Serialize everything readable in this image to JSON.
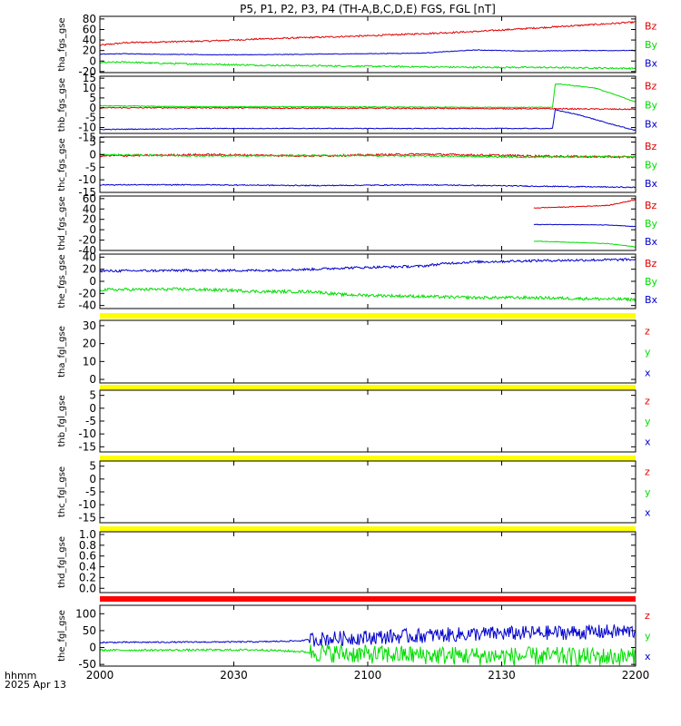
{
  "title": "P5, P1, P2, P3, P4 (TH-A,B,C,D,E) FGS, FGL [nT]",
  "time_axis": {
    "label_line1": "hhmm",
    "label_line2": "2025 Apr 13",
    "ticks": [
      "2000",
      "2030",
      "2100",
      "2130",
      "2200"
    ]
  },
  "colors": {
    "z": "#e00000",
    "y": "#00dd00",
    "x": "#0000cc",
    "flag_yellow": "#ffff00",
    "flag_red": "#ff0000"
  },
  "chart_data": [
    {
      "type": "line",
      "ylabel": "tha_fgs_gse",
      "ylim": [
        -22,
        85
      ],
      "yticks": [
        "80",
        "60",
        "40",
        "20",
        "0",
        "-20"
      ],
      "ytick_values": [
        80,
        60,
        40,
        20,
        0,
        -20
      ],
      "legend": [
        "Bz",
        "By",
        "Bx"
      ],
      "series": [
        {
          "name": "Bz",
          "color": "#e00000",
          "x": [
            0,
            10,
            20,
            40,
            60,
            80,
            100,
            120,
            140,
            160,
            180,
            200
          ],
          "y": [
            30,
            35,
            36,
            38,
            42,
            45,
            48,
            52,
            56,
            62,
            68,
            74
          ],
          "noise": 1.5
        },
        {
          "name": "By",
          "color": "#00dd00",
          "x": [
            0,
            10,
            20,
            40,
            60,
            80,
            100,
            120,
            140,
            160,
            180,
            200
          ],
          "y": [
            -3,
            -2,
            -4,
            -6,
            -8,
            -9,
            -10,
            -11,
            -12,
            -12,
            -13,
            -14
          ],
          "noise": 1.5
        },
        {
          "name": "Bx",
          "color": "#0000cc",
          "x": [
            0,
            10,
            20,
            40,
            60,
            80,
            100,
            120,
            140,
            160,
            180,
            200
          ],
          "y": [
            13,
            14,
            13,
            12,
            12,
            13,
            14,
            15,
            21,
            19,
            20,
            20
          ],
          "noise": 0.6
        }
      ]
    },
    {
      "type": "line",
      "ylabel": "thb_fgs_gse",
      "ylim": [
        -13,
        16
      ],
      "yticks": [
        "15",
        "10",
        "5",
        "0",
        "-5",
        "-10",
        "-15"
      ],
      "ytick_values": [
        15,
        10,
        5,
        0,
        -5,
        -10,
        -15
      ],
      "legend": [
        "Bz",
        "By",
        "Bx"
      ],
      "series": [
        {
          "name": "Bz",
          "color": "#e00000",
          "x": [
            0,
            40,
            80,
            120,
            170,
            172,
            200
          ],
          "y": [
            0,
            0,
            -0.2,
            -0.3,
            -0.5,
            -0.5,
            -0.8
          ],
          "noise": 0.3
        },
        {
          "name": "By",
          "color": "#00dd00",
          "x": [
            0,
            40,
            80,
            120,
            169,
            170,
            172,
            185,
            200
          ],
          "y": [
            1,
            0.5,
            0.5,
            0.3,
            0.2,
            12,
            12,
            10,
            3
          ],
          "noise": 0.2
        },
        {
          "name": "Bx",
          "color": "#0000cc",
          "x": [
            0,
            40,
            80,
            120,
            169,
            170,
            180,
            190,
            200
          ],
          "y": [
            -11,
            -10.5,
            -10.5,
            -10.5,
            -10.5,
            -1,
            -4,
            -8,
            -11.5
          ],
          "noise": 0.2
        }
      ]
    },
    {
      "type": "line",
      "ylabel": "thc_fgs_gse",
      "ylim": [
        -15,
        7
      ],
      "yticks": [
        "5",
        "0",
        "-5",
        "-10",
        "-15"
      ],
      "ytick_values": [
        5,
        0,
        -5,
        -10,
        -15
      ],
      "legend": [
        "Bz",
        "By",
        "Bx"
      ],
      "series": [
        {
          "name": "Bz",
          "color": "#e00000",
          "x": [
            0,
            40,
            80,
            120,
            160,
            200
          ],
          "y": [
            -0.5,
            0,
            -0.5,
            0.2,
            -0.5,
            -1
          ],
          "noise": 0.4
        },
        {
          "name": "By",
          "color": "#00dd00",
          "x": [
            0,
            40,
            80,
            120,
            160,
            200
          ],
          "y": [
            0,
            -0.5,
            -0.3,
            -0.5,
            -1,
            -0.8
          ],
          "noise": 0.3
        },
        {
          "name": "Bx",
          "color": "#0000cc",
          "x": [
            0,
            40,
            80,
            120,
            160,
            200
          ],
          "y": [
            -12,
            -12,
            -12.3,
            -12,
            -12.5,
            -13
          ],
          "noise": 0.2
        }
      ]
    },
    {
      "type": "line",
      "ylabel": "thd_fgs_gse",
      "ylim": [
        -40,
        65
      ],
      "yticks": [
        "60",
        "40",
        "20",
        "0",
        "-20",
        "-40"
      ],
      "ytick_values": [
        60,
        40,
        20,
        0,
        -20,
        -40
      ],
      "legend": [
        "Bz",
        "By",
        "Bx"
      ],
      "series": [
        {
          "name": "Bz",
          "color": "#e00000",
          "x": [
            162,
            175,
            190,
            200
          ],
          "y": [
            42,
            44,
            47,
            58
          ],
          "noise": 0.8
        },
        {
          "name": "By",
          "color": "#00dd00",
          "x": [
            162,
            175,
            190,
            200
          ],
          "y": [
            -22,
            -24,
            -27,
            -33
          ],
          "noise": 0.5
        },
        {
          "name": "Bx",
          "color": "#0000cc",
          "x": [
            162,
            175,
            190,
            200
          ],
          "y": [
            10,
            10,
            9,
            6
          ],
          "noise": 0.5
        }
      ]
    },
    {
      "type": "line",
      "ylabel": "the_fgs_gse",
      "ylim": [
        -45,
        45
      ],
      "yticks": [
        "40",
        "20",
        "0",
        "-20",
        "-40"
      ],
      "ytick_values": [
        40,
        20,
        0,
        -20,
        -40
      ],
      "legend": [
        "Bz",
        "By",
        "Bx"
      ],
      "series": [
        {
          "name": "By",
          "color": "#00dd00",
          "x": [
            0,
            30,
            50,
            60,
            80,
            90,
            120,
            140,
            160,
            200
          ],
          "y": [
            -14,
            -13,
            -15,
            -17,
            -17,
            -22,
            -25,
            -27,
            -27,
            -30
          ],
          "noise": 2.5
        },
        {
          "name": "Bx",
          "color": "#0000cc",
          "x": [
            0,
            30,
            50,
            60,
            80,
            90,
            120,
            130,
            140,
            160,
            200
          ],
          "y": [
            17,
            18,
            18,
            18,
            20,
            22,
            25,
            30,
            32,
            34,
            36
          ],
          "noise": 2.0
        }
      ]
    },
    {
      "type": "line",
      "ylabel": "tha_fgl_gse",
      "ylim": [
        -2,
        33
      ],
      "yticks": [
        "30",
        "20",
        "10",
        "0"
      ],
      "ytick_values": [
        30,
        20,
        10,
        0
      ],
      "legend": [
        "z",
        "y",
        "x"
      ],
      "flag_color": "#ffff00",
      "series": []
    },
    {
      "type": "line",
      "ylabel": "thb_fgl_gse",
      "ylim": [
        -17,
        7
      ],
      "yticks": [
        "5",
        "0",
        "-5",
        "-10",
        "-15"
      ],
      "ytick_values": [
        5,
        0,
        -5,
        -10,
        -15
      ],
      "legend": [
        "z",
        "y",
        "x"
      ],
      "flag_color": "#ffff00",
      "series": []
    },
    {
      "type": "line",
      "ylabel": "thc_fgl_gse",
      "ylim": [
        -17,
        7
      ],
      "yticks": [
        "5",
        "0",
        "-5",
        "-10",
        "-15"
      ],
      "ytick_values": [
        5,
        0,
        -5,
        -10,
        -15
      ],
      "legend": [
        "z",
        "y",
        "x"
      ],
      "flag_color": "#ffff00",
      "series": []
    },
    {
      "type": "line",
      "ylabel": "thd_fgl_gse",
      "ylim": [
        -0.08,
        1.05
      ],
      "yticks": [
        "1.0",
        "0.8",
        "0.6",
        "0.4",
        "0.2",
        "0.0"
      ],
      "ytick_values": [
        1.0,
        0.8,
        0.6,
        0.4,
        0.2,
        0.0
      ],
      "legend": [],
      "flag_color": "#ffff00",
      "series": []
    },
    {
      "type": "line",
      "ylabel": "the_fgl_gse",
      "ylim": [
        -55,
        125
      ],
      "yticks": [
        "100",
        "50",
        "0",
        "-50"
      ],
      "ytick_values": [
        100,
        50,
        0,
        -50
      ],
      "legend": [
        "z",
        "y",
        "x"
      ],
      "flag_color": "#ff0000",
      "series": [
        {
          "name": "y",
          "color": "#00dd00",
          "x": [
            0,
            60,
            75,
            80,
            100,
            140,
            200
          ],
          "y": [
            -8,
            -7,
            -12,
            -15,
            -20,
            -25,
            -28
          ],
          "noise": 3,
          "noise_late": 28
        },
        {
          "name": "x",
          "color": "#0000cc",
          "x": [
            0,
            60,
            75,
            80,
            100,
            140,
            200
          ],
          "y": [
            15,
            17,
            20,
            25,
            30,
            40,
            48
          ],
          "noise": 2,
          "noise_late": 22
        }
      ]
    }
  ]
}
